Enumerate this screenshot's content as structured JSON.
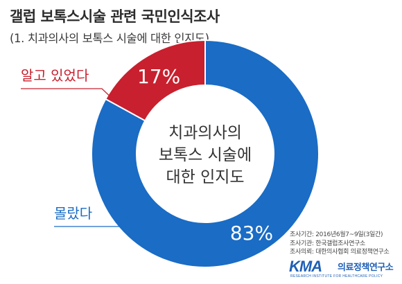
{
  "header": {
    "title": "갤럽 보톡스시술 관련 국민인식조사",
    "subtitle": "(1. 치과의사의 보톡스 시술에 대한 인지도)"
  },
  "chart_data": {
    "type": "pie",
    "donut": true,
    "title": "",
    "center_label_lines": [
      "치과의사의",
      "보톡스 시술에",
      "대한 인지도"
    ],
    "slices": [
      {
        "label": "알고 있었다",
        "value": 17,
        "value_label": "17%",
        "color": "#c8202e"
      },
      {
        "label": "몰랐다",
        "value": 83,
        "value_label": "83%",
        "color": "#1a6cc5"
      }
    ]
  },
  "credits": {
    "period": "조사기간: 2016년6월7~9일(3일간)",
    "agency": "조사기관: 한국갤럽조사연구소",
    "client": "조사의뢰: 대한의사협회 의료정책연구소"
  },
  "logo": {
    "mark": "KMA",
    "name": "의료정책연구소",
    "sub": "RESEARCH INSTITUTE FOR HEALTHCARE POLICY"
  }
}
